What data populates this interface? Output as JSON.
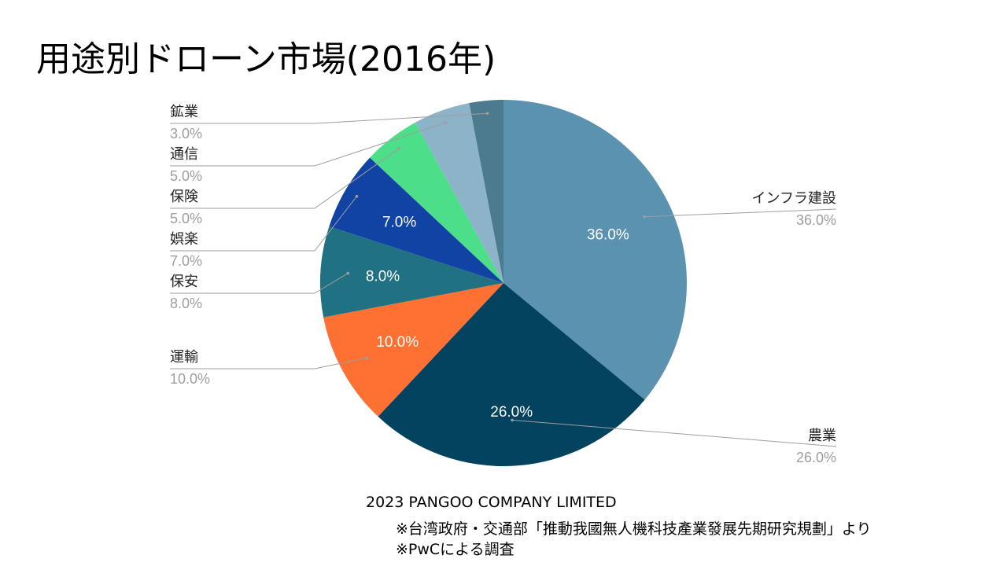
{
  "title": "用途別ドローン市場(2016年)",
  "chart_data": {
    "type": "pie",
    "title": "",
    "slices": [
      {
        "label": "インフラ建設",
        "value": 36.0,
        "value_label": "36.0%",
        "color": "#5a92b0"
      },
      {
        "label": "農業",
        "value": 26.0,
        "value_label": "26.0%",
        "color": "#03435f"
      },
      {
        "label": "運輸",
        "value": 10.0,
        "value_label": "10.0%",
        "color": "#ff7033"
      },
      {
        "label": "保安",
        "value": 8.0,
        "value_label": "8.0%",
        "color": "#207283"
      },
      {
        "label": "娯楽",
        "value": 7.0,
        "value_label": "7.0%",
        "color": "#1143a5"
      },
      {
        "label": "保険",
        "value": 5.0,
        "value_label": "5.0%",
        "color": "#4cde88"
      },
      {
        "label": "通信",
        "value": 5.0,
        "value_label": "5.0%",
        "color": "#8db3c9"
      },
      {
        "label": "鉱業",
        "value": 3.0,
        "value_label": "3.0%",
        "color": "#4c7a8e"
      }
    ],
    "legend": "callout-labels"
  },
  "footer": {
    "copyright": "2023 PANGOO COMPANY LIMITED",
    "source1": "※台湾政府・交通部「推動我國無人機科技產業發展先期研究規劃」より",
    "source2": "※PwCによる調査"
  }
}
